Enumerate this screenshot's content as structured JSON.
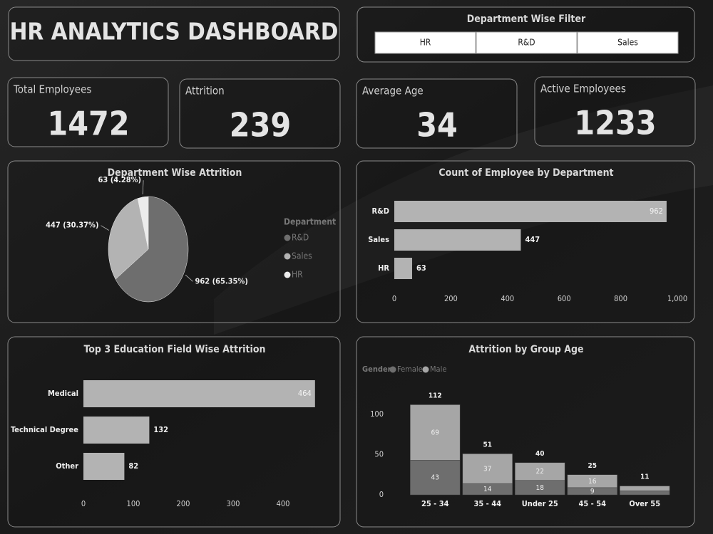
{
  "header": {
    "title": "HR ANALYTICS DASHBOARD"
  },
  "filter": {
    "title": "Department Wise Filter",
    "options": [
      "HR",
      "R&D",
      "Sales"
    ]
  },
  "kpis": [
    {
      "label": "Total Employees",
      "value": 1472
    },
    {
      "label": "Attrition",
      "value": 239
    },
    {
      "label": "Average Age",
      "value": 34
    },
    {
      "label": "Active Employees",
      "value": 1233
    }
  ],
  "chart_data": [
    {
      "type": "pie",
      "title": "Department Wise Attrition",
      "categories": [
        "R&D",
        "Sales",
        "HR"
      ],
      "values": [
        962,
        447,
        63
      ],
      "value_labels": [
        "962 (65.35%)",
        "447 (30.37%)",
        "63 (4.28%)"
      ],
      "colors": [
        "#6e6e6e",
        "#b3b3b3",
        "#ececec"
      ],
      "legend_title": "Department",
      "legend": "right"
    },
    {
      "type": "hbar",
      "title": "Count of Employee by Department",
      "categories": [
        "R&D",
        "Sales",
        "HR"
      ],
      "values": [
        962,
        447,
        63
      ],
      "color": "#b3b3b3",
      "xlim": [
        0,
        1000
      ],
      "xticks": [
        0,
        200,
        400,
        600,
        800,
        {
          "value": 1000,
          "label": "1,000"
        }
      ]
    },
    {
      "type": "hbar",
      "title": "Top 3 Education Field Wise Attrition",
      "categories": [
        "Medical",
        "Technical Degree",
        "Other"
      ],
      "values": [
        464,
        132,
        82
      ],
      "color": "#b3b3b3",
      "xlim": [
        0,
        470
      ],
      "xticks": [
        0,
        100,
        200,
        300,
        400
      ]
    },
    {
      "type": "stacked_bar",
      "title": "Attrition by Group Age",
      "legend_title": "Gender",
      "legend": "top-left",
      "categories": [
        "25 - 34",
        "35 - 44",
        "Under 25",
        "45 - 54",
        "Over 55"
      ],
      "series": [
        {
          "name": "Female",
          "color": "#6e6e6e",
          "values": [
            43,
            14,
            18,
            9,
            5
          ]
        },
        {
          "name": "Male",
          "color": "#a6a6a6",
          "values": [
            69,
            37,
            22,
            16,
            6
          ]
        }
      ],
      "totals": [
        112,
        51,
        40,
        25,
        11
      ],
      "ylim": [
        0,
        120
      ],
      "yticks": [
        0,
        50,
        100
      ]
    }
  ]
}
